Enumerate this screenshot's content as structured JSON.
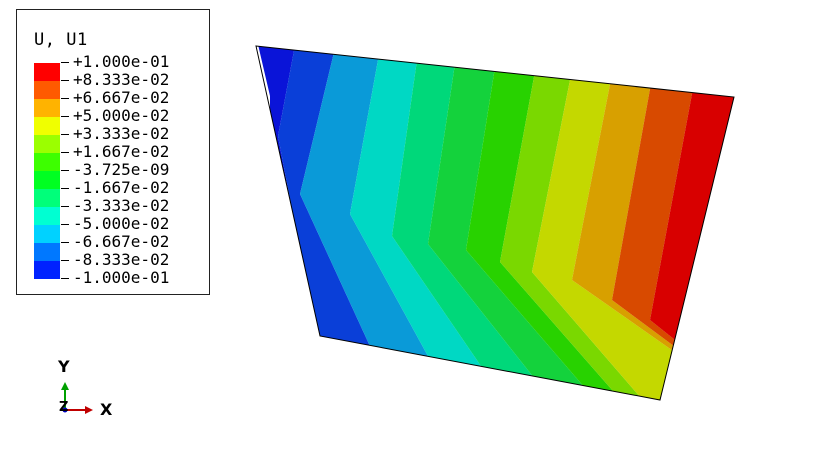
{
  "legend": {
    "title": "U, U1",
    "entries": [
      {
        "label": "+1.000e-01",
        "color": "#ff0000"
      },
      {
        "label": "+8.333e-02",
        "color": "#ff5a00"
      },
      {
        "label": "+6.667e-02",
        "color": "#ffb300"
      },
      {
        "label": "+5.000e-02",
        "color": "#f0ff00"
      },
      {
        "label": "+3.333e-02",
        "color": "#9bff00"
      },
      {
        "label": "+1.667e-02",
        "color": "#3dff00"
      },
      {
        "label": "-3.725e-09",
        "color": "#00ff22"
      },
      {
        "label": "-1.667e-02",
        "color": "#00ff7a"
      },
      {
        "label": "-3.333e-02",
        "color": "#00ffd2"
      },
      {
        "label": "-5.000e-02",
        "color": "#00d2ff"
      },
      {
        "label": "-6.667e-02",
        "color": "#0078ff"
      },
      {
        "label": "-8.333e-02",
        "color": "#0022ff"
      },
      {
        "label": "-1.000e-01",
        "color": ""
      }
    ],
    "swatch_colors": [
      "#ff0000",
      "#ff5a00",
      "#ffb300",
      "#f0ff00",
      "#9bff00",
      "#3dff00",
      "#00ff22",
      "#00ff7a",
      "#00ffd2",
      "#00d2ff",
      "#0078ff",
      "#0022ff"
    ]
  },
  "contour_colors": [
    "#0a14d8",
    "#0a3fd8",
    "#0a9ad8",
    "#00d8c4",
    "#00d87a",
    "#14d23c",
    "#28d200",
    "#7ad800",
    "#c4d800",
    "#d8a000",
    "#d84a00",
    "#d80000"
  ],
  "triad": {
    "y_label": "Y",
    "x_label": "X",
    "z_label": "Z"
  }
}
